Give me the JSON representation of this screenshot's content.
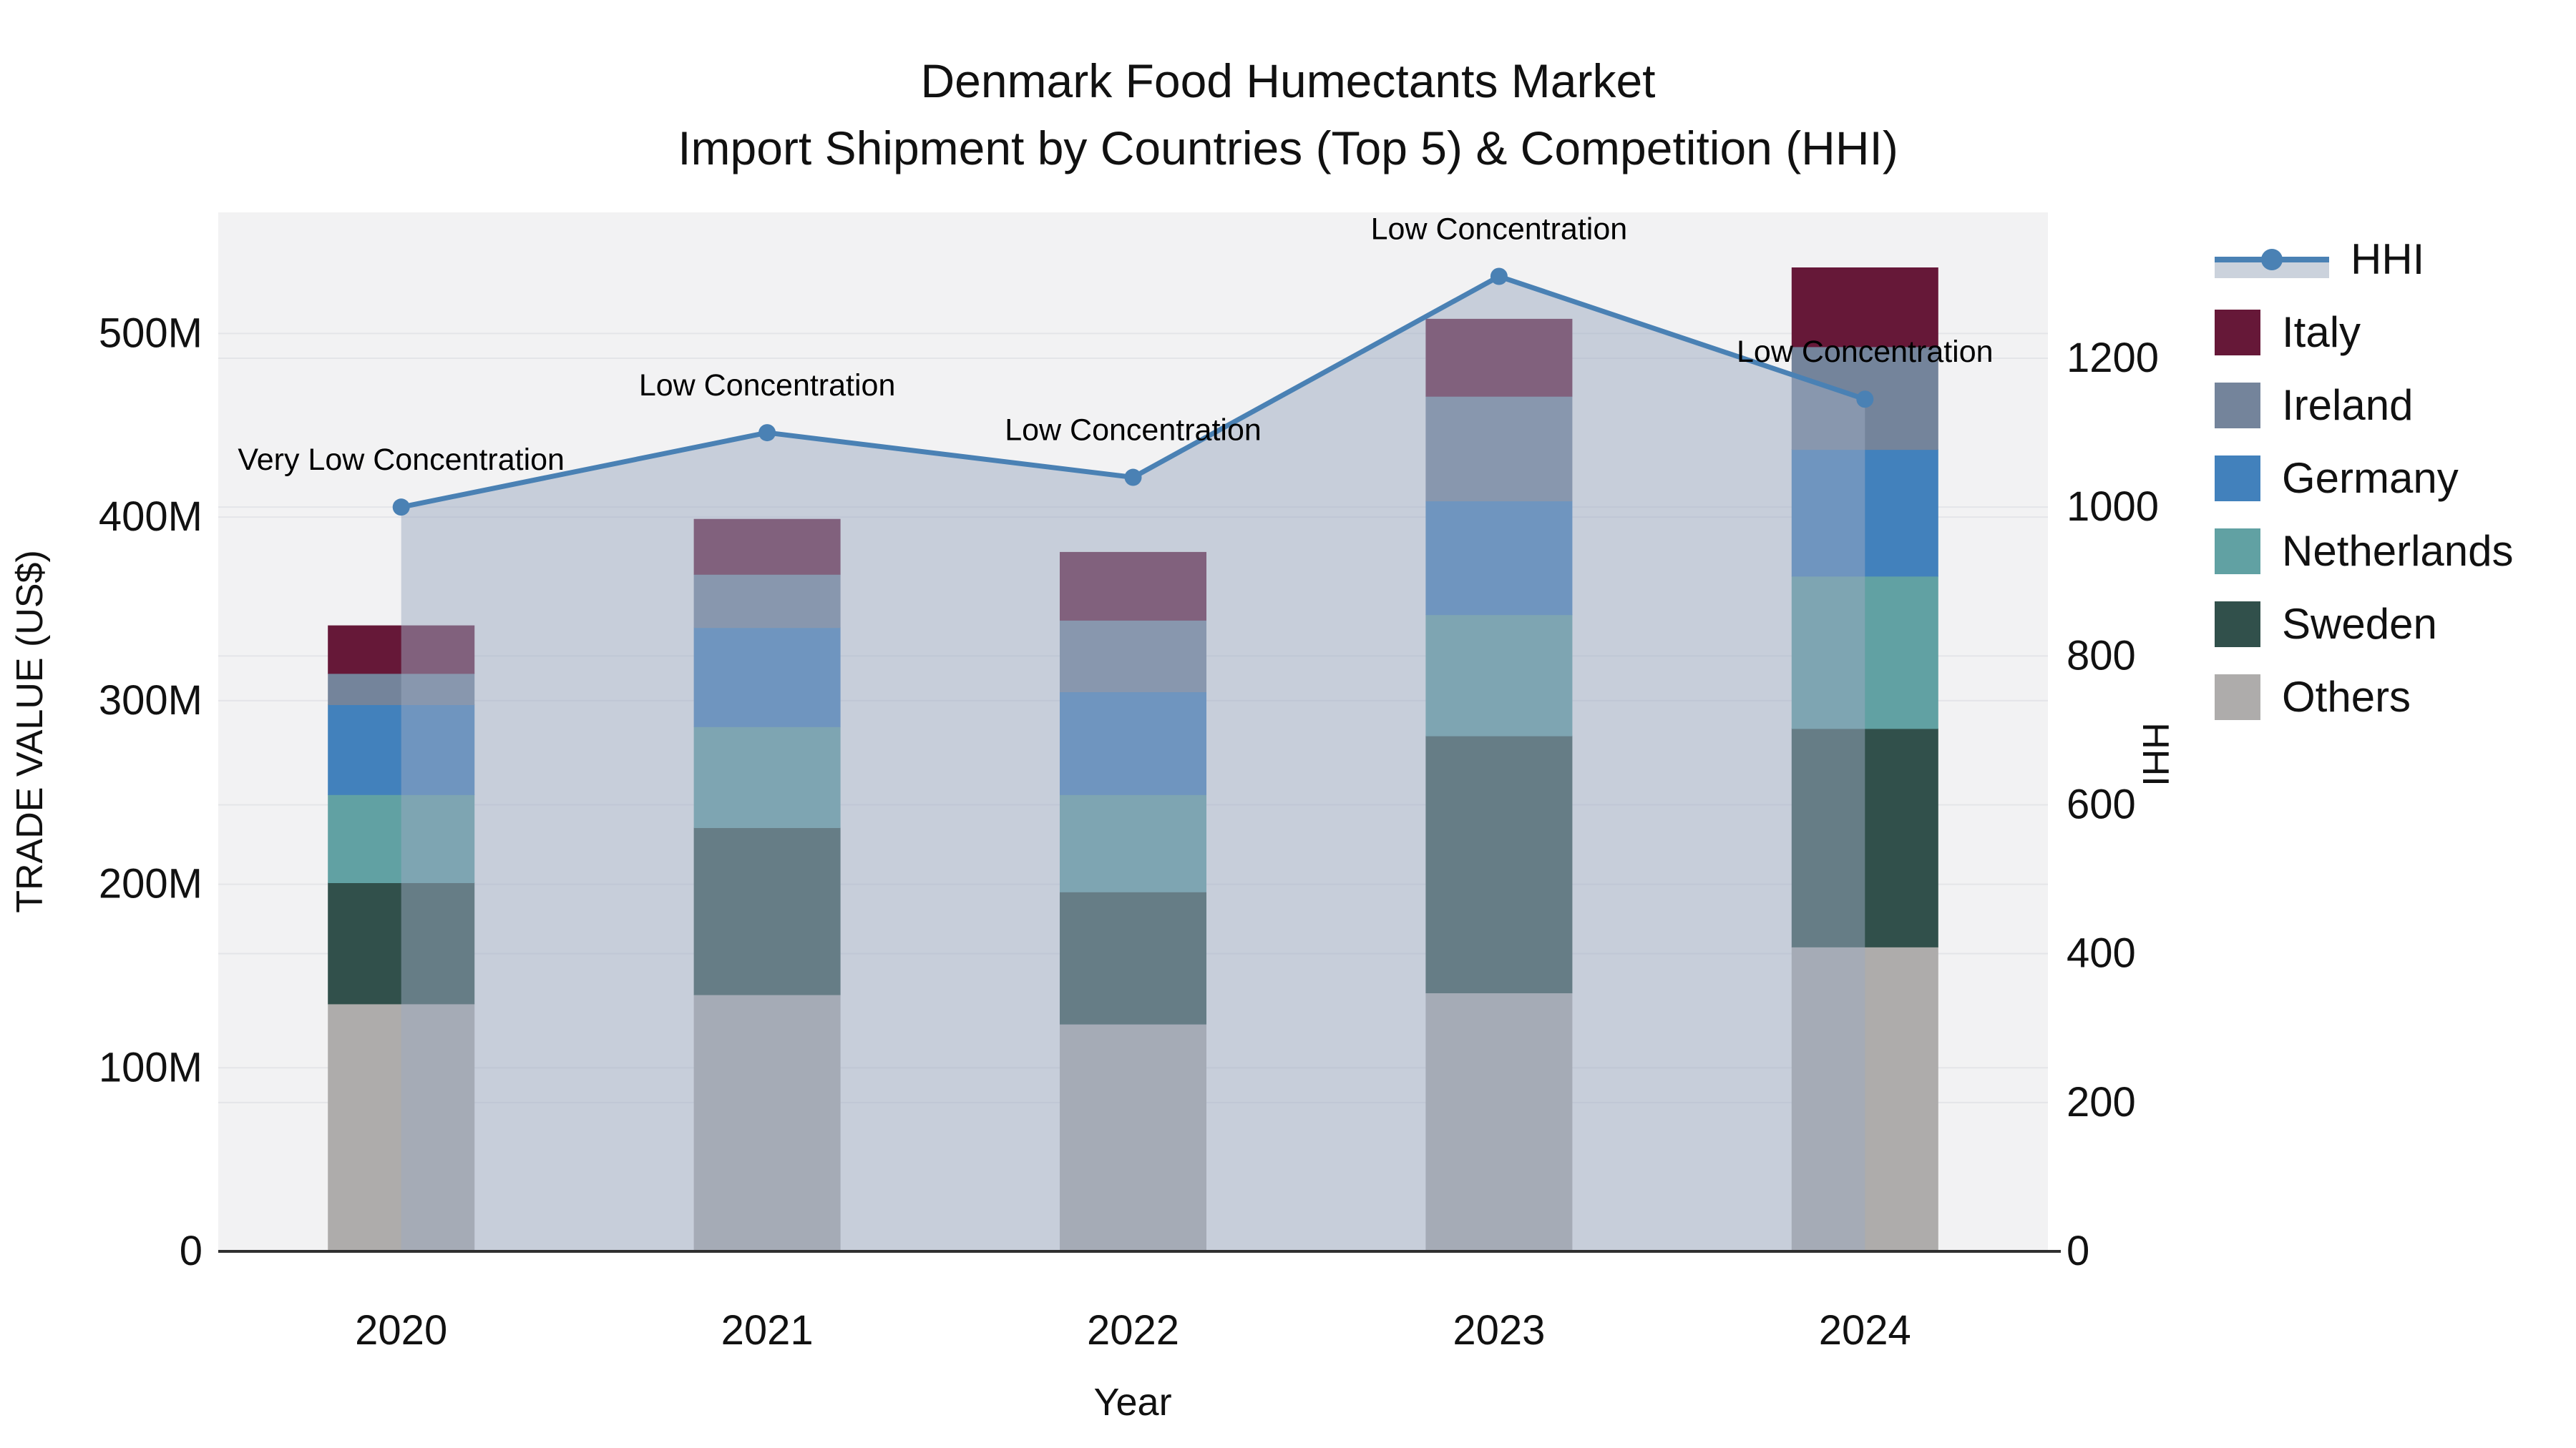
{
  "title": {
    "line1": "Denmark Food Humectants Market",
    "line2": "Import Shipment by Countries (Top 5) & Competition (HHI)"
  },
  "colors": {
    "background": "#ffffff",
    "plot_background": "#f2f2f3",
    "gridline": "#e4e5e8",
    "axis_line": "#2f2f2f",
    "text": "#111111",
    "hhi_line": "#4a81b4",
    "hhi_area_fill": "rgba(155,170,193,0.5)",
    "legend_band": "#cbd2dc"
  },
  "legend": {
    "items": [
      {
        "label": "HHI",
        "type": "line"
      },
      {
        "label": "Italy",
        "type": "swatch",
        "color": "#661838"
      },
      {
        "label": "Ireland",
        "type": "swatch",
        "color": "#74849b"
      },
      {
        "label": "Germany",
        "type": "swatch",
        "color": "#4281bc"
      },
      {
        "label": "Netherlands",
        "type": "swatch",
        "color": "#61a1a3"
      },
      {
        "label": "Sweden",
        "type": "swatch",
        "color": "#31504b"
      },
      {
        "label": "Others",
        "type": "swatch",
        "color": "#aeacab"
      }
    ]
  },
  "chart_data": {
    "type": "combo_stacked_bar_line_area",
    "title": "Denmark Food Humectants Market — Import Shipment by Countries (Top 5) & Competition (HHI)",
    "categories": [
      "2020",
      "2021",
      "2022",
      "2023",
      "2024"
    ],
    "bar_value_unit": "US$ millions",
    "series": [
      {
        "name": "Others",
        "color": "#aeacab",
        "values": [
          135,
          140,
          124,
          141,
          166
        ]
      },
      {
        "name": "Sweden",
        "color": "#31504b",
        "values": [
          66,
          91,
          72,
          140,
          119
        ]
      },
      {
        "name": "Netherlands",
        "color": "#61a1a3",
        "values": [
          48,
          55,
          53,
          66,
          83
        ]
      },
      {
        "name": "Germany",
        "color": "#4281bc",
        "values": [
          49,
          54,
          56,
          62,
          69
        ]
      },
      {
        "name": "Ireland",
        "color": "#74849b",
        "values": [
          17,
          29,
          39,
          57,
          56
        ]
      },
      {
        "name": "Italy",
        "color": "#661838",
        "values": [
          26,
          30,
          37,
          42,
          43
        ]
      }
    ],
    "stack_totals_musd": [
      341,
      399,
      381,
      508,
      536
    ],
    "line": {
      "name": "HHI",
      "axis": "right",
      "color": "#4a81b4",
      "area_fill": "rgba(155,170,193,0.5)",
      "values": [
        1000,
        1100,
        1040,
        1310,
        1145
      ]
    },
    "annotations": [
      {
        "category": "2020",
        "text": "Very Low Concentration"
      },
      {
        "category": "2021",
        "text": "Low Concentration"
      },
      {
        "category": "2022",
        "text": "Low Concentration"
      },
      {
        "category": "2023",
        "text": "Low Concentration"
      },
      {
        "category": "2024",
        "text": "Low Concentration"
      }
    ],
    "left_axis": {
      "title": "TRADE VALUE (US$)",
      "tick_values": [
        0,
        100,
        200,
        300,
        400,
        500
      ],
      "tick_labels": [
        "0",
        "100M",
        "200M",
        "300M",
        "400M",
        "500M"
      ],
      "max_value": 566,
      "grid": true
    },
    "right_axis": {
      "title": "HHI",
      "tick_values": [
        0,
        200,
        400,
        600,
        800,
        1000,
        1200
      ],
      "tick_labels": [
        "0",
        "200",
        "400",
        "600",
        "800",
        "1000",
        "1200"
      ],
      "max_value": 1396,
      "grid": true
    },
    "x_axis": {
      "title": "Year"
    }
  }
}
